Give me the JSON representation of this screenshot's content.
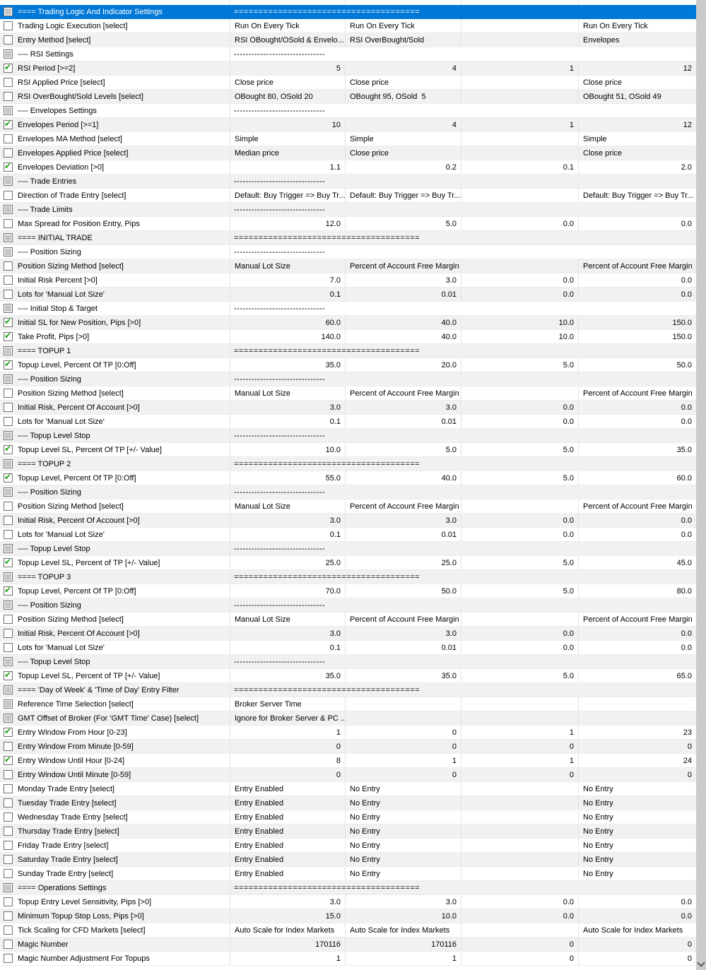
{
  "colors": {
    "selection_blue": "#0078D7",
    "check_green": "#16A316",
    "row_alt_gray": "#F1F1F1",
    "grid_line": "#E4E4E4",
    "checkbox_gray_fill": "#C6C6C6",
    "scrollbar_gray": "#CBCBCB"
  },
  "scrollbar": {
    "down_arrow_icon": "chevron-down"
  },
  "table": {
    "rows": [
      {
        "type": "section",
        "selected": true,
        "checkbox": "gray",
        "label": "==== Trading Logic And Indicator Settings",
        "value": "======================================"
      },
      {
        "type": "param",
        "checkbox": "unchecked",
        "label": "Trading Logic Execution [select]",
        "cells": [
          "Run On Every Tick",
          "Run On Every Tick",
          "",
          "Run On Every Tick"
        ]
      },
      {
        "type": "param",
        "checkbox": "unchecked",
        "label": "Entry Method [select]",
        "cells": [
          "RSI OBought/OSold & Envelo...",
          "RSI OverBought/Sold",
          "",
          "Envelopes"
        ]
      },
      {
        "type": "section",
        "checkbox": "gray",
        "label": "---- RSI Settings",
        "value": "-------------------------------"
      },
      {
        "type": "param",
        "checkbox": "checked",
        "label": "RSI Period [>=2]",
        "cells": [
          "5",
          "4",
          "1",
          "12"
        ]
      },
      {
        "type": "param",
        "checkbox": "unchecked",
        "label": "RSI Applied Price [select]",
        "cells": [
          "Close price",
          "Close price",
          "",
          "Close price"
        ]
      },
      {
        "type": "param",
        "checkbox": "unchecked",
        "label": "RSI OverBought/Sold Levels [select]",
        "cells": [
          "OBought 80, OSold 20",
          "OBought 95, OSold  5",
          "",
          "OBought 51, OSold 49"
        ]
      },
      {
        "type": "section",
        "checkbox": "gray",
        "label": "---- Envelopes Settings",
        "value": "-------------------------------"
      },
      {
        "type": "param",
        "checkbox": "checked",
        "label": "Envelopes Period [>=1]",
        "cells": [
          "10",
          "4",
          "1",
          "12"
        ]
      },
      {
        "type": "param",
        "checkbox": "unchecked",
        "label": "Envelopes MA Method [select]",
        "cells": [
          "Simple",
          "Simple",
          "",
          "Simple"
        ]
      },
      {
        "type": "param",
        "checkbox": "unchecked",
        "label": "Envelopes Applied Price [select]",
        "cells": [
          "Median price",
          "Close price",
          "",
          "Close price"
        ]
      },
      {
        "type": "param",
        "checkbox": "checked",
        "label": "Envelopes Deviation [>0]",
        "cells": [
          "1.1",
          "0.2",
          "0.1",
          "2.0"
        ]
      },
      {
        "type": "section",
        "checkbox": "gray",
        "label": "---- Trade Entries",
        "value": "-------------------------------"
      },
      {
        "type": "param",
        "checkbox": "unchecked",
        "label": "Direction of Trade Entry [select]",
        "cells": [
          "Default: Buy Trigger => Buy Tr...",
          "Default: Buy Trigger => Buy Tr...",
          "",
          "Default: Buy Trigger => Buy Tr..."
        ]
      },
      {
        "type": "section",
        "checkbox": "gray",
        "label": "---- Trade Limits",
        "value": "-------------------------------"
      },
      {
        "type": "param",
        "checkbox": "unchecked",
        "label": "Max Spread for Position Entry, Pips",
        "cells": [
          "12.0",
          "5.0",
          "0.0",
          "0.0"
        ]
      },
      {
        "type": "section",
        "checkbox": "gray",
        "label": "==== INITIAL TRADE",
        "value": "======================================"
      },
      {
        "type": "section",
        "checkbox": "gray",
        "label": "---- Position Sizing",
        "value": "-------------------------------"
      },
      {
        "type": "param",
        "checkbox": "unchecked",
        "label": "Position Sizing Method [select]",
        "cells": [
          "Manual Lot Size",
          "Percent of Account Free Margin",
          "",
          "Percent of Account Free Margin"
        ]
      },
      {
        "type": "param",
        "checkbox": "unchecked",
        "label": "Initial Risk Percent [>0]",
        "cells": [
          "7.0",
          "3.0",
          "0.0",
          "0.0"
        ]
      },
      {
        "type": "param",
        "checkbox": "unchecked",
        "label": "Lots for 'Manual Lot Size'",
        "cells": [
          "0.1",
          "0.01",
          "0.0",
          "0.0"
        ]
      },
      {
        "type": "section",
        "checkbox": "gray",
        "label": "---- Initial Stop & Target",
        "value": "-------------------------------"
      },
      {
        "type": "param",
        "checkbox": "checked",
        "label": "Initial SL for New Position, Pips [>0]",
        "cells": [
          "60.0",
          "40.0",
          "10.0",
          "150.0"
        ]
      },
      {
        "type": "param",
        "checkbox": "checked",
        "label": "Take Profit, Pips [>0]",
        "cells": [
          "140.0",
          "40.0",
          "10.0",
          "150.0"
        ]
      },
      {
        "type": "section",
        "checkbox": "gray",
        "label": "==== TOPUP 1",
        "value": "======================================"
      },
      {
        "type": "param",
        "checkbox": "checked",
        "label": "Topup Level, Percent Of TP [0:Off]",
        "cells": [
          "35.0",
          "20.0",
          "5.0",
          "50.0"
        ]
      },
      {
        "type": "section",
        "checkbox": "gray",
        "label": "---- Position Sizing",
        "value": "-------------------------------"
      },
      {
        "type": "param",
        "checkbox": "unchecked",
        "label": "Position Sizing Method [select]",
        "cells": [
          "Manual Lot Size",
          "Percent of Account Free Margin",
          "",
          "Percent of Account Free Margin"
        ]
      },
      {
        "type": "param",
        "checkbox": "unchecked",
        "label": "Initial Risk, Percent Of Account [>0]",
        "cells": [
          "3.0",
          "3.0",
          "0.0",
          "0.0"
        ]
      },
      {
        "type": "param",
        "checkbox": "unchecked",
        "label": "Lots for 'Manual Lot Size'",
        "cells": [
          "0.1",
          "0.01",
          "0.0",
          "0.0"
        ]
      },
      {
        "type": "section",
        "checkbox": "gray",
        "label": "---- Topup Level Stop",
        "value": "-------------------------------"
      },
      {
        "type": "param",
        "checkbox": "checked",
        "label": "Topup Level SL, Percent Of TP [+/- Value]",
        "cells": [
          "10.0",
          "5.0",
          "5.0",
          "35.0"
        ]
      },
      {
        "type": "section",
        "checkbox": "gray",
        "label": "==== TOPUP 2",
        "value": "======================================"
      },
      {
        "type": "param",
        "checkbox": "checked",
        "label": "Topup Level, Percent Of TP [0:Off]",
        "cells": [
          "55.0",
          "40.0",
          "5.0",
          "60.0"
        ]
      },
      {
        "type": "section",
        "checkbox": "gray",
        "label": "---- Position Sizing",
        "value": "-------------------------------"
      },
      {
        "type": "param",
        "checkbox": "unchecked",
        "label": "Position Sizing Method [select]",
        "cells": [
          "Manual Lot Size",
          "Percent of Account Free Margin",
          "",
          "Percent of Account Free Margin"
        ]
      },
      {
        "type": "param",
        "checkbox": "unchecked",
        "label": "Initial Risk, Percent Of Account [>0]",
        "cells": [
          "3.0",
          "3.0",
          "0.0",
          "0.0"
        ]
      },
      {
        "type": "param",
        "checkbox": "unchecked",
        "label": "Lots for 'Manual Lot Size'",
        "cells": [
          "0.1",
          "0.01",
          "0.0",
          "0.0"
        ]
      },
      {
        "type": "section",
        "checkbox": "gray",
        "label": "---- Topup Level Stop",
        "value": "-------------------------------"
      },
      {
        "type": "param",
        "checkbox": "checked",
        "label": "Topup Level SL, Percent of TP [+/- Value]",
        "cells": [
          "25.0",
          "25.0",
          "5.0",
          "45.0"
        ]
      },
      {
        "type": "section",
        "checkbox": "gray",
        "label": "==== TOPUP 3",
        "value": "======================================"
      },
      {
        "type": "param",
        "checkbox": "checked",
        "label": "Topup Level, Percent Of TP [0:Off]",
        "cells": [
          "70.0",
          "50.0",
          "5.0",
          "80.0"
        ]
      },
      {
        "type": "section",
        "checkbox": "gray",
        "label": "---- Position Sizing",
        "value": "-------------------------------"
      },
      {
        "type": "param",
        "checkbox": "unchecked",
        "label": "Position Sizing Method [select]",
        "cells": [
          "Manual Lot Size",
          "Percent of Account Free Margin",
          "",
          "Percent of Account Free Margin"
        ]
      },
      {
        "type": "param",
        "checkbox": "unchecked",
        "label": "Initial Risk, Percent Of Account [>0]",
        "cells": [
          "3.0",
          "3.0",
          "0.0",
          "0.0"
        ]
      },
      {
        "type": "param",
        "checkbox": "unchecked",
        "label": "Lots for 'Manual Lot Size'",
        "cells": [
          "0.1",
          "0.01",
          "0.0",
          "0.0"
        ]
      },
      {
        "type": "section",
        "checkbox": "gray",
        "label": "---- Topup Level Stop",
        "value": "-------------------------------"
      },
      {
        "type": "param",
        "checkbox": "checked",
        "label": "Topup Level SL, Percent of TP [+/- Value]",
        "cells": [
          "35.0",
          "35.0",
          "5.0",
          "65.0"
        ]
      },
      {
        "type": "section",
        "checkbox": "gray",
        "label": "==== 'Day of Week' & 'Time of Day' Entry Filter",
        "value": "======================================"
      },
      {
        "type": "param",
        "checkbox": "gray",
        "label": "Reference Time Selection [select]",
        "cells": [
          "Broker Server Time",
          "",
          "",
          ""
        ]
      },
      {
        "type": "param",
        "checkbox": "gray",
        "label": "GMT Offset of Broker (For 'GMT Time' Case) [select]",
        "cells": [
          "Ignore for Broker Server & PC ...",
          "",
          "",
          ""
        ]
      },
      {
        "type": "param",
        "checkbox": "checked",
        "label": "Entry Window From Hour [0-23]",
        "cells": [
          "1",
          "0",
          "1",
          "23"
        ]
      },
      {
        "type": "param",
        "checkbox": "unchecked",
        "label": "Entry Window From Minute [0-59]",
        "cells": [
          "0",
          "0",
          "0",
          "0"
        ]
      },
      {
        "type": "param",
        "checkbox": "checked",
        "label": "Entry Window Until Hour [0-24]",
        "cells": [
          "8",
          "1",
          "1",
          "24"
        ]
      },
      {
        "type": "param",
        "checkbox": "unchecked",
        "label": "Entry Window Until Minute [0-59]",
        "cells": [
          "0",
          "0",
          "0",
          "0"
        ]
      },
      {
        "type": "param",
        "checkbox": "unchecked",
        "label": "Monday Trade Entry [select]",
        "cells": [
          "Entry Enabled",
          "No Entry",
          "",
          "No Entry"
        ]
      },
      {
        "type": "param",
        "checkbox": "unchecked",
        "label": "Tuesday Trade Entry [select]",
        "cells": [
          "Entry Enabled",
          "No Entry",
          "",
          "No Entry"
        ]
      },
      {
        "type": "param",
        "checkbox": "unchecked",
        "label": "Wednesday Trade Entry [select]",
        "cells": [
          "Entry Enabled",
          "No Entry",
          "",
          "No Entry"
        ]
      },
      {
        "type": "param",
        "checkbox": "unchecked",
        "label": "Thursday Trade Entry [select]",
        "cells": [
          "Entry Enabled",
          "No Entry",
          "",
          "No Entry"
        ]
      },
      {
        "type": "param",
        "checkbox": "unchecked",
        "label": "Friday Trade Entry [select]",
        "cells": [
          "Entry Enabled",
          "No Entry",
          "",
          "No Entry"
        ]
      },
      {
        "type": "param",
        "checkbox": "unchecked",
        "label": "Saturday Trade Entry [select]",
        "cells": [
          "Entry Enabled",
          "No Entry",
          "",
          "No Entry"
        ]
      },
      {
        "type": "param",
        "checkbox": "unchecked",
        "label": "Sunday Trade Entry [select]",
        "cells": [
          "Entry Enabled",
          "No Entry",
          "",
          "No Entry"
        ]
      },
      {
        "type": "section",
        "checkbox": "gray",
        "label": "==== Operations Settings",
        "value": "======================================"
      },
      {
        "type": "param",
        "checkbox": "unchecked",
        "label": "Topup Entry Level Sensitivity, Pips [>0]",
        "cells": [
          "3.0",
          "3.0",
          "0.0",
          "0.0"
        ]
      },
      {
        "type": "param",
        "checkbox": "unchecked",
        "label": "Minimum Topup Stop Loss, Pips [>0]",
        "cells": [
          "15.0",
          "10.0",
          "0.0",
          "0.0"
        ]
      },
      {
        "type": "param",
        "checkbox": "unchecked",
        "label": "Tick Scaling for CFD Markets [select]",
        "cells": [
          "Auto Scale for Index Markets",
          "Auto Scale for Index Markets",
          "",
          "Auto Scale for Index Markets"
        ]
      },
      {
        "type": "param",
        "checkbox": "unchecked",
        "label": "Magic Number",
        "cells": [
          "170116",
          "170116",
          "0",
          "0"
        ]
      },
      {
        "type": "param",
        "checkbox": "unchecked",
        "label": "Magic Number Adjustment For Topups",
        "cells": [
          "1",
          "1",
          "0",
          "0"
        ]
      }
    ]
  }
}
